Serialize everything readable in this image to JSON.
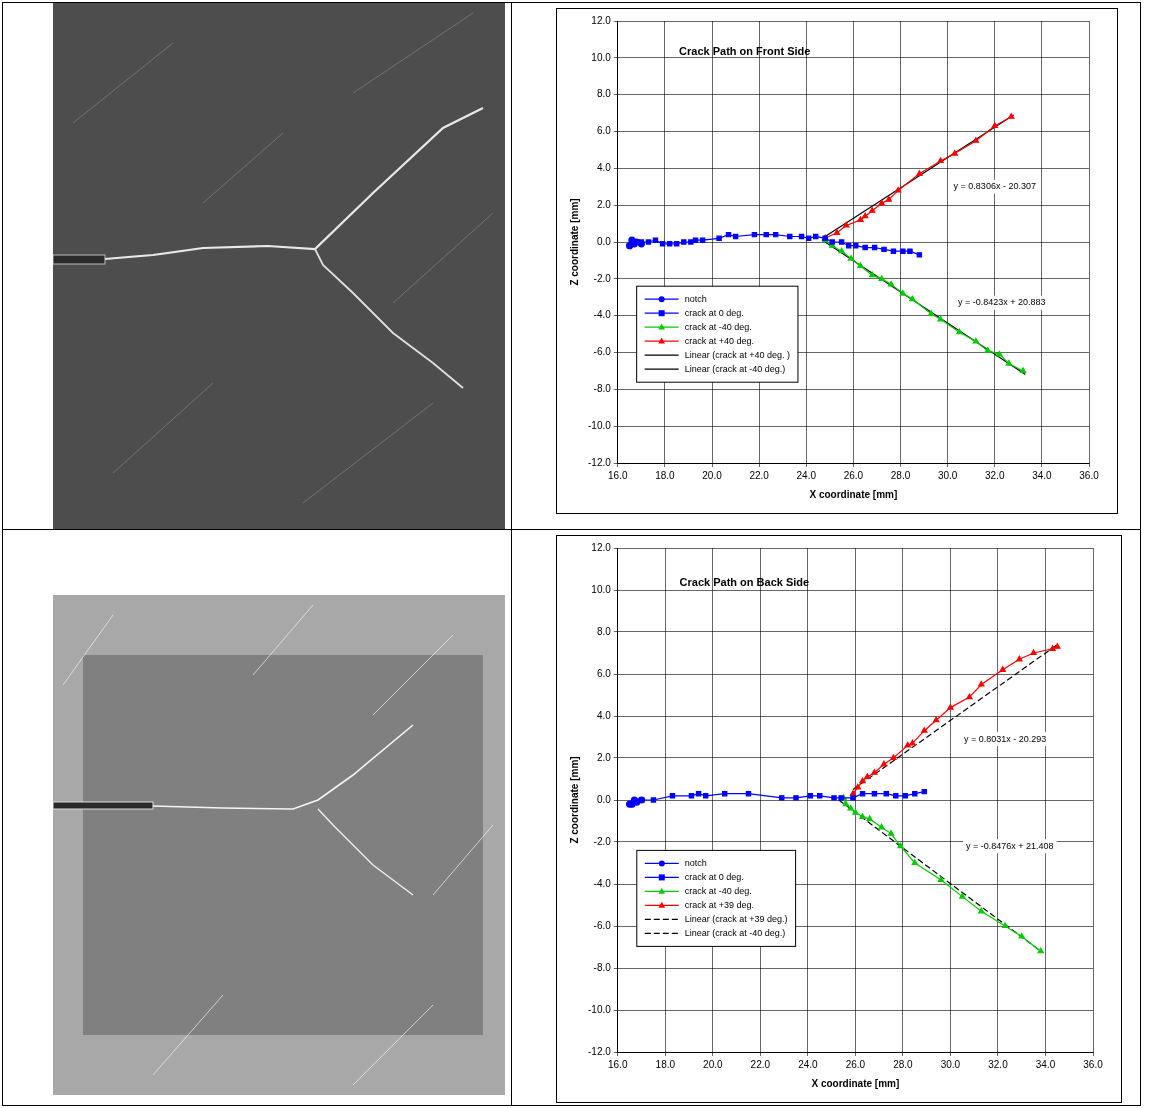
{
  "chart_data": [
    {
      "type": "scatter",
      "title": "Crack Path on Front Side",
      "x_label": "X coordinate [mm]",
      "y_label": "Z coordinate [mm]",
      "xlim": [
        16,
        36
      ],
      "ylim": [
        -12,
        12
      ],
      "xticks": [
        {
          "value": 16,
          "label": "16.0"
        },
        {
          "value": 18,
          "label": "18.0"
        },
        {
          "value": 20,
          "label": "20.0"
        },
        {
          "value": 22,
          "label": "22.0"
        },
        {
          "value": 24,
          "label": "24.0"
        },
        {
          "value": 26,
          "label": "26.0"
        },
        {
          "value": 28,
          "label": "28.0"
        },
        {
          "value": 30,
          "label": "30.0"
        },
        {
          "value": 32,
          "label": "32.0"
        },
        {
          "value": 34,
          "label": "34.0"
        },
        {
          "value": 36,
          "label": "36.0"
        }
      ],
      "yticks": [
        {
          "value": -12,
          "label": "-12.0"
        },
        {
          "value": -10,
          "label": "-10.0"
        },
        {
          "value": -8,
          "label": "-8.0"
        },
        {
          "value": -6,
          "label": "-6.0"
        },
        {
          "value": -4,
          "label": "-4.0"
        },
        {
          "value": -2,
          "label": "-2.0"
        },
        {
          "value": 0,
          "label": "0.0"
        },
        {
          "value": 2,
          "label": "2.0"
        },
        {
          "value": 4,
          "label": "4.0"
        },
        {
          "value": 6,
          "label": "6.0"
        },
        {
          "value": 8,
          "label": "8.0"
        },
        {
          "value": 10,
          "label": "10.0"
        },
        {
          "value": 12,
          "label": "12.0"
        }
      ],
      "grid": true,
      "legend": "lower left",
      "series": [
        {
          "name": "notch",
          "color": "#0000ff",
          "marker": "circle",
          "line_style": "solid",
          "x": [
            16.5,
            16.6,
            16.7,
            16.8,
            17.0
          ],
          "values": [
            -0.2,
            0.1,
            -0.1,
            0.0,
            -0.1
          ]
        },
        {
          "name": "crack at 0 deg.",
          "color": "#0000ff",
          "marker": "square",
          "line_style": "solid",
          "x": [
            17.0,
            17.3,
            17.6,
            17.9,
            18.2,
            18.5,
            18.8,
            19.1,
            19.3,
            19.6,
            20.3,
            20.7,
            21.0,
            21.8,
            22.3,
            22.7,
            23.3,
            23.8,
            24.1,
            24.4,
            24.8,
            25.1,
            25.5,
            25.8,
            26.1,
            26.5,
            26.9,
            27.3,
            27.7,
            28.1,
            28.4,
            28.8
          ],
          "values": [
            0.0,
            0.0,
            0.1,
            -0.1,
            -0.1,
            -0.1,
            0.0,
            0.0,
            0.1,
            0.1,
            0.2,
            0.4,
            0.3,
            0.4,
            0.4,
            0.4,
            0.3,
            0.3,
            0.2,
            0.3,
            0.2,
            0.0,
            0.0,
            -0.2,
            -0.2,
            -0.3,
            -0.3,
            -0.4,
            -0.5,
            -0.5,
            -0.5,
            -0.7
          ]
        },
        {
          "name": "crack at -40 deg.",
          "color": "#00cc00",
          "marker": "triangle",
          "line_style": "solid",
          "x": [
            24.8,
            25.1,
            25.5,
            25.9,
            26.3,
            26.8,
            27.2,
            27.6,
            28.1,
            28.5,
            29.3,
            29.7,
            30.5,
            31.2,
            31.7,
            32.2,
            32.6,
            33.2
          ],
          "values": [
            0.1,
            -0.2,
            -0.5,
            -0.9,
            -1.3,
            -1.8,
            -2.0,
            -2.3,
            -2.8,
            -3.1,
            -3.9,
            -4.2,
            -4.9,
            -5.4,
            -5.9,
            -6.1,
            -6.6,
            -7.0
          ]
        },
        {
          "name": "crack at +40 deg.",
          "color": "#ff0000",
          "marker": "triangle",
          "line_style": "solid",
          "x": [
            24.8,
            25.3,
            25.7,
            26.3,
            26.5,
            26.8,
            27.2,
            27.5,
            27.9,
            28.8,
            29.7,
            30.3,
            31.2,
            32.0,
            32.7
          ],
          "values": [
            0.2,
            0.5,
            0.9,
            1.2,
            1.4,
            1.7,
            2.1,
            2.3,
            2.8,
            3.7,
            4.4,
            4.8,
            5.5,
            6.3,
            6.8
          ]
        },
        {
          "name": "Linear (crack at +40 deg. )",
          "color": "#000000",
          "marker": "none",
          "line_style": "solid",
          "x": [
            24.8,
            32.8
          ],
          "values": [
            0.3,
            6.9
          ]
        },
        {
          "name": "Linear (crack at -40 deg.)",
          "color": "#000000",
          "marker": "none",
          "line_style": "solid",
          "x": [
            24.8,
            33.3
          ],
          "values": [
            0.0,
            -7.2
          ]
        }
      ],
      "annotations": [
        {
          "text": "y = 0.8306x - 20.307",
          "x": 32.0,
          "y": 3.0
        },
        {
          "text": "y = -0.8423x + 20.883",
          "x": 32.3,
          "y": -3.3
        }
      ]
    },
    {
      "type": "scatter",
      "title": "Crack Path on Back Side",
      "x_label": "X coordinate [mm]",
      "y_label": "Z coordinate [mm]",
      "xlim": [
        16,
        36
      ],
      "ylim": [
        -12,
        12
      ],
      "xticks": [
        {
          "value": 16,
          "label": "16.0"
        },
        {
          "value": 18,
          "label": "18.0"
        },
        {
          "value": 20,
          "label": "20.0"
        },
        {
          "value": 22,
          "label": "22.0"
        },
        {
          "value": 24,
          "label": "24.0"
        },
        {
          "value": 26,
          "label": "26.0"
        },
        {
          "value": 28,
          "label": "28.0"
        },
        {
          "value": 30,
          "label": "30.0"
        },
        {
          "value": 32,
          "label": "32.0"
        },
        {
          "value": 34,
          "label": "34.0"
        },
        {
          "value": 36,
          "label": "36.0"
        }
      ],
      "yticks": [
        {
          "value": -12,
          "label": "-12.0"
        },
        {
          "value": -10,
          "label": "-10.0"
        },
        {
          "value": -8,
          "label": "-8.0"
        },
        {
          "value": -6,
          "label": "-6.0"
        },
        {
          "value": -4,
          "label": "-4.0"
        },
        {
          "value": -2,
          "label": "-2.0"
        },
        {
          "value": 0,
          "label": "0.0"
        },
        {
          "value": 2,
          "label": "2.0"
        },
        {
          "value": 4,
          "label": "4.0"
        },
        {
          "value": 6,
          "label": "6.0"
        },
        {
          "value": 8,
          "label": "8.0"
        },
        {
          "value": 10,
          "label": "10.0"
        },
        {
          "value": 12,
          "label": "12.0"
        }
      ],
      "grid": true,
      "legend": "lower left",
      "series": [
        {
          "name": "notch",
          "color": "#0000ff",
          "marker": "circle",
          "line_style": "solid",
          "x": [
            16.5,
            16.6,
            16.7,
            16.8,
            17.0
          ],
          "values": [
            -0.2,
            -0.2,
            0.0,
            -0.1,
            0.0
          ]
        },
        {
          "name": "crack at 0 deg.",
          "color": "#0000ff",
          "marker": "square",
          "line_style": "solid",
          "x": [
            17.0,
            17.5,
            18.3,
            19.1,
            19.4,
            19.7,
            20.5,
            21.5,
            22.9,
            23.5,
            24.1,
            24.5,
            25.1,
            25.4,
            25.9,
            26.3,
            26.8,
            27.3,
            27.7,
            28.1,
            28.5,
            28.9
          ],
          "values": [
            0.0,
            0.0,
            0.2,
            0.2,
            0.3,
            0.2,
            0.3,
            0.3,
            0.1,
            0.1,
            0.2,
            0.2,
            0.1,
            0.1,
            0.1,
            0.3,
            0.3,
            0.3,
            0.2,
            0.2,
            0.3,
            0.4
          ]
        },
        {
          "name": "crack at -40 deg.",
          "color": "#00cc00",
          "marker": "triangle",
          "line_style": "solid",
          "x": [
            25.5,
            25.6,
            25.8,
            26.0,
            26.3,
            26.6,
            27.1,
            27.5,
            27.9,
            28.5,
            29.6,
            30.5,
            31.3,
            32.3,
            33.0,
            33.8
          ],
          "values": [
            0.1,
            -0.2,
            -0.4,
            -0.6,
            -0.8,
            -0.9,
            -1.3,
            -1.6,
            -2.2,
            -3.0,
            -3.8,
            -4.6,
            -5.3,
            -6.0,
            -6.5,
            -7.2
          ]
        },
        {
          "name": "crack at +39 deg.",
          "color": "#ff0000",
          "marker": "triangle",
          "line_style": "solid",
          "x": [
            25.9,
            26.1,
            26.3,
            26.5,
            26.8,
            27.2,
            27.6,
            28.2,
            28.4,
            28.9,
            29.4,
            30.0,
            30.8,
            31.3,
            32.2,
            32.9,
            33.5,
            34.3,
            34.5
          ],
          "values": [
            0.3,
            0.6,
            0.9,
            1.1,
            1.3,
            1.7,
            2.0,
            2.6,
            2.7,
            3.3,
            3.8,
            4.4,
            4.9,
            5.5,
            6.2,
            6.7,
            7.0,
            7.2,
            7.3
          ]
        },
        {
          "name": "Linear (crack at +39 deg.)",
          "color": "#000000",
          "marker": "none",
          "line_style": "dashed",
          "x": [
            25.9,
            34.5
          ],
          "values": [
            0.5,
            7.4
          ]
        },
        {
          "name": "Linear (crack at -40 deg.)",
          "color": "#000000",
          "marker": "none",
          "line_style": "dashed",
          "x": [
            25.3,
            33.8
          ],
          "values": [
            0.0,
            -7.2
          ]
        }
      ],
      "annotations": [
        {
          "text": "y = 0.8031x - 20.293",
          "x": 32.3,
          "y": 2.9
        },
        {
          "text": "y = -0.8476x + 21.408",
          "x": 32.5,
          "y": -2.2
        }
      ]
    }
  ]
}
